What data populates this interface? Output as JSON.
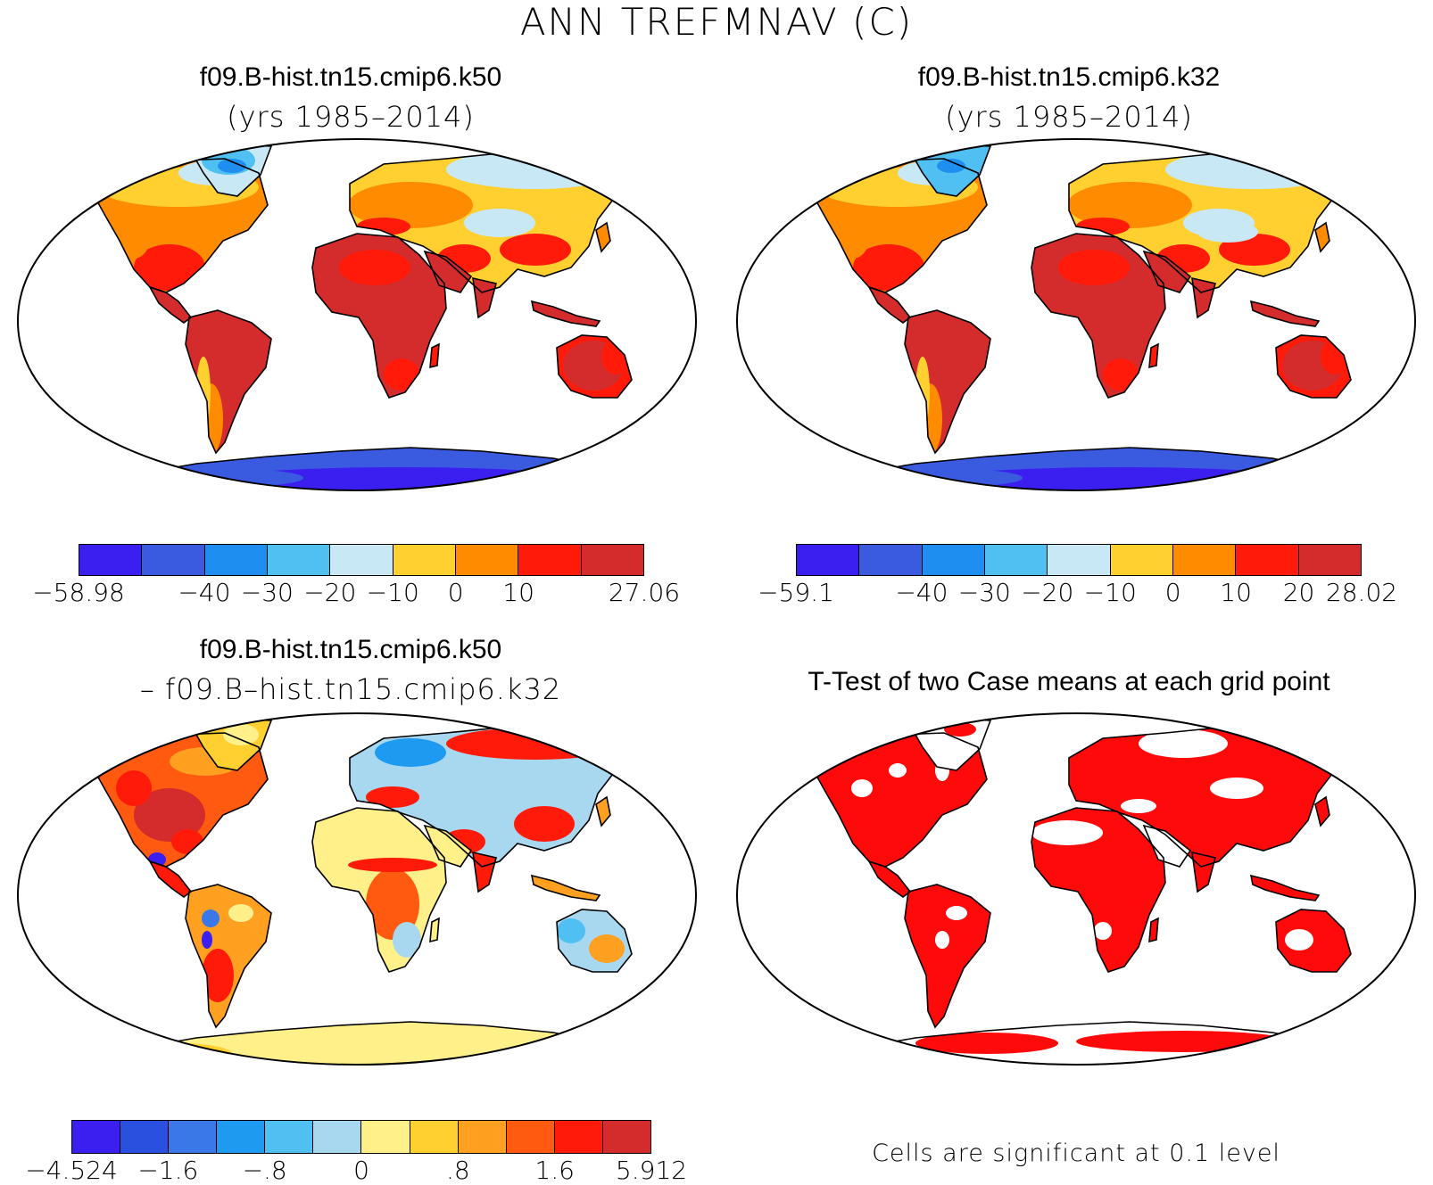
{
  "title": "ANN TREFMNAV (C)",
  "panels": [
    {
      "id": "k50",
      "title": "f09.B-hist.tn15.cmip6.k50",
      "subtitle": "(yrs 1985–2014)"
    },
    {
      "id": "k32",
      "title": "f09.B-hist.tn15.cmip6.k32",
      "subtitle": "(yrs 1985–2014)"
    },
    {
      "id": "diff",
      "title": "f09.B-hist.tn15.cmip6.k50",
      "subtitle": "– f09.B–hist.tn15.cmip6.k32"
    },
    {
      "id": "ttest",
      "title": "T-Test of two Case means at each grid point",
      "subtitle": ""
    }
  ],
  "colorbars": {
    "k50": {
      "colors": [
        "#3a1ff0",
        "#3a5ae0",
        "#1e8ff0",
        "#50c0f2",
        "#c8e8f6",
        "#ffd030",
        "#ff8c00",
        "#ff1a0a",
        "#d42c2c"
      ],
      "labels": [
        "−58.98",
        "−40",
        "−30",
        "−20",
        "−10",
        "0",
        "10",
        "27.06"
      ],
      "label_edges": [
        0,
        2,
        3,
        4,
        5,
        6,
        7,
        9
      ]
    },
    "k32": {
      "colors": [
        "#3a1ff0",
        "#3a5ae0",
        "#1e8ff0",
        "#50c0f2",
        "#c8e8f6",
        "#ffd030",
        "#ff8c00",
        "#ff1a0a",
        "#d42c2c"
      ],
      "labels": [
        "−59.1",
        "−40",
        "−30",
        "−20",
        "−10",
        "0",
        "10",
        "20",
        "28.02"
      ],
      "label_edges": [
        0,
        2,
        3,
        4,
        5,
        6,
        7,
        8,
        9
      ]
    },
    "diff": {
      "colors": [
        "#3a1ff0",
        "#2a50e0",
        "#3a78e8",
        "#1e9af0",
        "#50c0f2",
        "#a8d8f0",
        "#fff08a",
        "#ffd030",
        "#ffa020",
        "#ff5a10",
        "#ff1a0a",
        "#d42c2c"
      ],
      "labels": [
        "−4.524",
        "−1.6",
        "−.8",
        "0",
        ".8",
        "1.6",
        "5.912"
      ],
      "label_edges": [
        0,
        2,
        4,
        6,
        8,
        10,
        12
      ]
    }
  },
  "significance_note": "Cells are significant at 0.1 level",
  "colors": {
    "significant": "#ff0a0a",
    "coast": "#000000"
  }
}
